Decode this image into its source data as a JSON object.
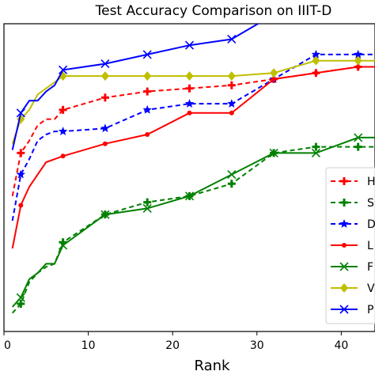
{
  "chart_data": {
    "type": "line",
    "title": "Test Accuracy Comparison on IIIT-D",
    "xlabel": "Rank",
    "ylabel": "",
    "xlim": [
      0,
      44
    ],
    "ylim": [
      0.0,
      1.0
    ],
    "xticks": [
      0,
      10,
      20,
      30,
      40
    ],
    "grid": false,
    "legend_position": "right",
    "series": [
      {
        "name": "H",
        "color": "#ff0000",
        "dash": "6,4",
        "marker": "plus",
        "x": [
          1,
          2,
          3,
          4,
          5,
          6,
          7,
          12,
          17,
          22,
          27,
          32,
          37,
          42,
          44
        ],
        "y": [
          0.44,
          0.58,
          0.62,
          0.67,
          0.69,
          0.69,
          0.72,
          0.76,
          0.78,
          0.79,
          0.8,
          0.82,
          0.84,
          0.86,
          0.86
        ]
      },
      {
        "name": "S",
        "color": "#008000",
        "dash": "6,4",
        "marker": "plus",
        "x": [
          1,
          2,
          3,
          4,
          5,
          6,
          7,
          12,
          17,
          22,
          27,
          32,
          37,
          42,
          44
        ],
        "y": [
          0.06,
          0.09,
          0.16,
          0.19,
          0.21,
          0.22,
          0.29,
          0.38,
          0.42,
          0.44,
          0.48,
          0.58,
          0.6,
          0.6,
          0.6
        ]
      },
      {
        "name": "D",
        "color": "#0000ff",
        "dash": "6,4",
        "marker": "star",
        "x": [
          1,
          2,
          3,
          4,
          5,
          6,
          7,
          12,
          17,
          22,
          27,
          32,
          37,
          42,
          44
        ],
        "y": [
          0.36,
          0.51,
          0.56,
          0.62,
          0.64,
          0.65,
          0.65,
          0.66,
          0.72,
          0.74,
          0.74,
          0.82,
          0.9,
          0.9,
          0.9
        ]
      },
      {
        "name": "L",
        "color": "#ff0000",
        "dash": "",
        "marker": "dot",
        "x": [
          1,
          2,
          3,
          4,
          5,
          6,
          7,
          12,
          17,
          22,
          27,
          32,
          37,
          42,
          44
        ],
        "y": [
          0.27,
          0.41,
          0.47,
          0.51,
          0.55,
          0.56,
          0.57,
          0.61,
          0.64,
          0.71,
          0.71,
          0.82,
          0.84,
          0.86,
          0.86
        ]
      },
      {
        "name": "F",
        "color": "#008000",
        "dash": "",
        "marker": "x",
        "x": [
          1,
          2,
          3,
          4,
          5,
          6,
          7,
          12,
          17,
          22,
          27,
          32,
          37,
          42,
          44
        ],
        "y": [
          0.08,
          0.11,
          0.17,
          0.19,
          0.22,
          0.22,
          0.28,
          0.38,
          0.4,
          0.44,
          0.51,
          0.58,
          0.58,
          0.63,
          0.63
        ]
      },
      {
        "name": "V",
        "color": "#bfbf00",
        "dash": "",
        "marker": "diamond",
        "x": [
          1,
          2,
          3,
          4,
          5,
          6,
          7,
          12,
          17,
          22,
          27,
          32,
          37,
          42,
          44
        ],
        "y": [
          0.61,
          0.69,
          0.72,
          0.77,
          0.79,
          0.81,
          0.83,
          0.83,
          0.83,
          0.83,
          0.83,
          0.84,
          0.88,
          0.88,
          0.88
        ]
      },
      {
        "name": "P",
        "color": "#0000ff",
        "dash": "",
        "marker": "x",
        "x": [
          1,
          2,
          3,
          4,
          5,
          6,
          7,
          12,
          17,
          22,
          27,
          32,
          37,
          42,
          44
        ],
        "y": [
          0.59,
          0.71,
          0.75,
          0.75,
          0.78,
          0.8,
          0.85,
          0.87,
          0.9,
          0.93,
          0.95,
          1.03,
          1.03,
          1.03,
          1.03
        ]
      }
    ]
  }
}
